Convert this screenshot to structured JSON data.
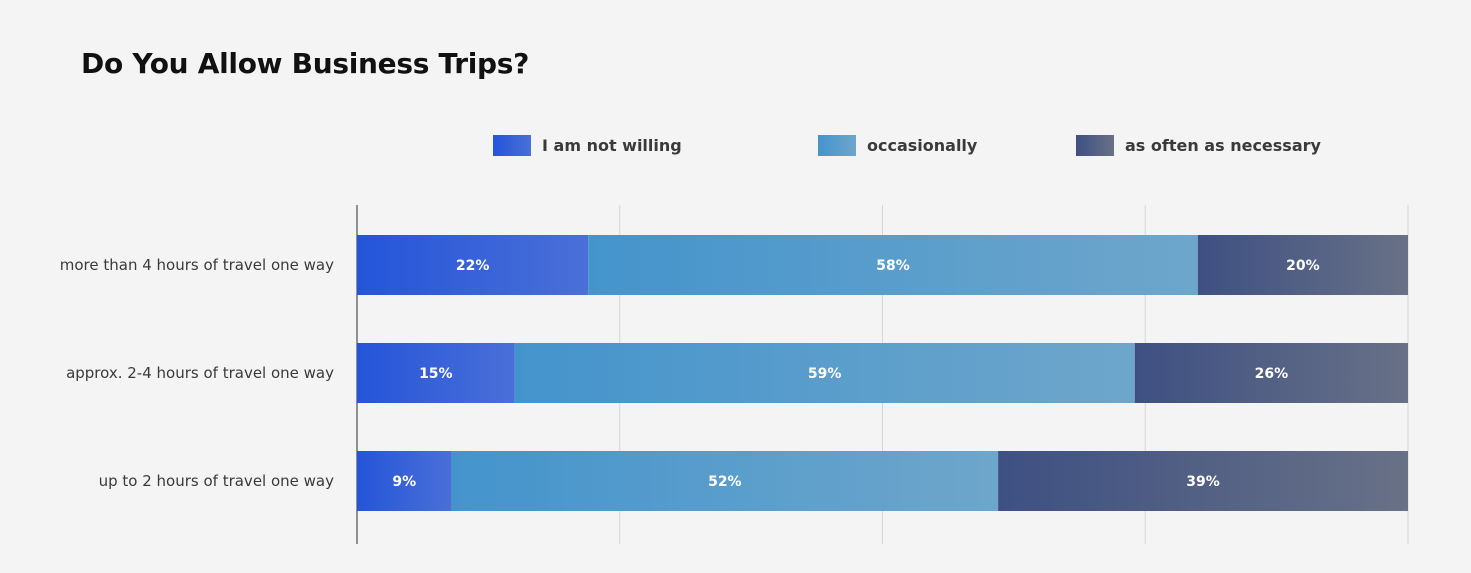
{
  "title": "Do You Allow Business Trips?",
  "colors": {
    "background": "#f4f4f4",
    "grid": "#d6d6d6",
    "axis": "#6f6f6f"
  },
  "chart_data": {
    "type": "bar",
    "orientation": "horizontal",
    "stacked": true,
    "title": "Do You Allow Business Trips?",
    "xlim": [
      0,
      100
    ],
    "grid": true,
    "legend_position": "top",
    "categories": [
      "more than 4 hours of travel one way",
      "approx. 2-4 hours of travel one way",
      "up to 2 hours of travel one way"
    ],
    "series": [
      {
        "name": "I am not willing",
        "values": [
          22,
          15,
          9
        ],
        "labels": [
          "22%",
          "15%",
          "9%"
        ],
        "color_start": "#2455d9",
        "color_end": "#4a6fd8"
      },
      {
        "name": "occasionally",
        "values": [
          58,
          59,
          52
        ],
        "labels": [
          "58%",
          "59%",
          "52%"
        ],
        "color_start": "#4494cc",
        "color_end": "#6ea6cb"
      },
      {
        "name": "as often as necessary",
        "values": [
          20,
          26,
          39
        ],
        "labels": [
          "20%",
          "26%",
          "39%"
        ],
        "color_start": "#3e5083",
        "color_end": "#687186"
      }
    ]
  }
}
